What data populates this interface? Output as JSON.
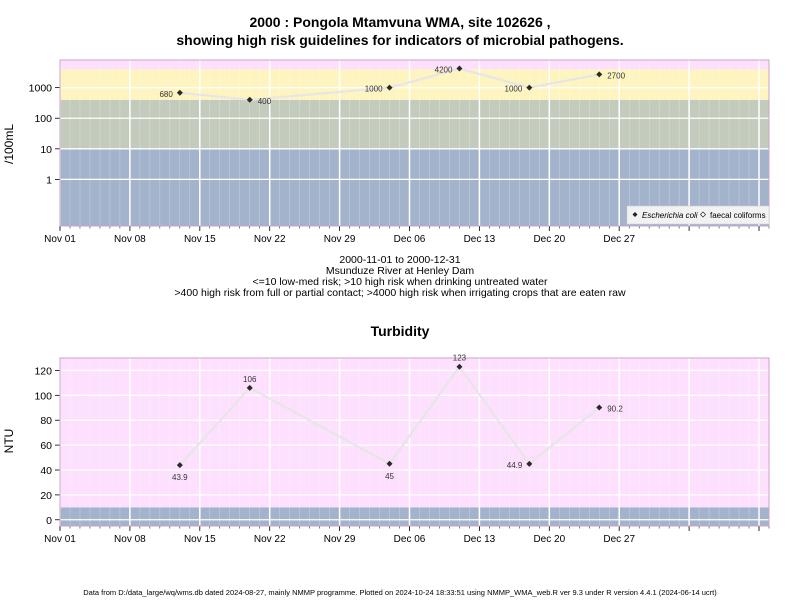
{
  "chart1": {
    "title_line1": "2000 : Pongola Mtamvuna WMA, site 102626 ,",
    "title_line2": "showing high risk guidelines for indicators of microbial pathogens.",
    "ylabel": "/100mL",
    "caption_lines": [
      "2000-11-01 to 2000-12-31",
      "Msunduze River at Henley Dam",
      "<=10 low-med risk; >10 high risk when drinking untreated water",
      ">400 high risk from full or partial contact; >4000 high risk when irrigating crops that are eaten raw"
    ],
    "legend": [
      "Escherichia coli",
      "faecal coliforms"
    ]
  },
  "chart2": {
    "title": "Turbidity",
    "ylabel": "NTU"
  },
  "footer": "Data from D:/data_large/wq/wms.db dated 2024-08-27, mainly NMMP programme. Plotted on 2024-10-24 18:33:51 using NMMP_WMA_web.R ver 9.3 under R version 4.4.1 (2024-06-14 ucrt)",
  "chart_data": [
    {
      "type": "line",
      "scale": "log",
      "x_tick_labels": [
        "Nov 01",
        "Nov 08",
        "Nov 15",
        "Nov 22",
        "Nov 29",
        "Dec 06",
        "Dec 13",
        "Dec 20",
        "Dec 27"
      ],
      "y_ticks": [
        1,
        10,
        100,
        1000
      ],
      "y_tick_labels": [
        "1",
        "10",
        "100",
        "1000"
      ],
      "bands": [
        {
          "from": 0.03,
          "to": 10,
          "color": "#a3b3cc"
        },
        {
          "from": 10,
          "to": 400,
          "color": "#c3cbbd"
        },
        {
          "from": 400,
          "to": 4000,
          "color": "#fdf4c0"
        },
        {
          "from": 4000,
          "to": 8000,
          "color": "#fde0fd"
        }
      ],
      "series": [
        {
          "name": "Escherichia coli",
          "points": [
            {
              "x": "2000-11-06",
              "y": 680,
              "label": "680"
            },
            {
              "x": "2000-11-13",
              "y": 400,
              "label": "400"
            },
            {
              "x": "2000-11-27",
              "y": 1000,
              "label": "1000"
            },
            {
              "x": "2000-12-04",
              "y": 4200,
              "label": "4200"
            },
            {
              "x": "2000-12-11",
              "y": 1000,
              "label": "1000"
            },
            {
              "x": "2000-12-18",
              "y": 2700,
              "label": "2700"
            }
          ]
        }
      ]
    },
    {
      "type": "line",
      "title": "Turbidity",
      "ylabel": "NTU",
      "x_tick_labels": [
        "Nov 01",
        "Nov 08",
        "Nov 15",
        "Nov 22",
        "Nov 29",
        "Dec 06",
        "Dec 13",
        "Dec 20",
        "Dec 27"
      ],
      "y_ticks": [
        0,
        20,
        40,
        60,
        80,
        100,
        120
      ],
      "y_tick_labels": [
        "0",
        "20",
        "40",
        "60",
        "80",
        "100",
        "120"
      ],
      "bands": [
        {
          "from": -5,
          "to": 10,
          "color": "#a3b3cc"
        },
        {
          "from": 10,
          "to": 130,
          "color": "#fde0fd"
        }
      ],
      "series": [
        {
          "name": "",
          "points": [
            {
              "x": "2000-11-06",
              "y": 43.9,
              "label": "43.9"
            },
            {
              "x": "2000-11-13",
              "y": 106,
              "label": "106"
            },
            {
              "x": "2000-11-27",
              "y": 45,
              "label": "45"
            },
            {
              "x": "2000-12-04",
              "y": 123,
              "label": "123"
            },
            {
              "x": "2000-12-11",
              "y": 44.9,
              "label": "44.9"
            },
            {
              "x": "2000-12-18",
              "y": 90.2,
              "label": "90.2"
            }
          ]
        }
      ]
    }
  ]
}
